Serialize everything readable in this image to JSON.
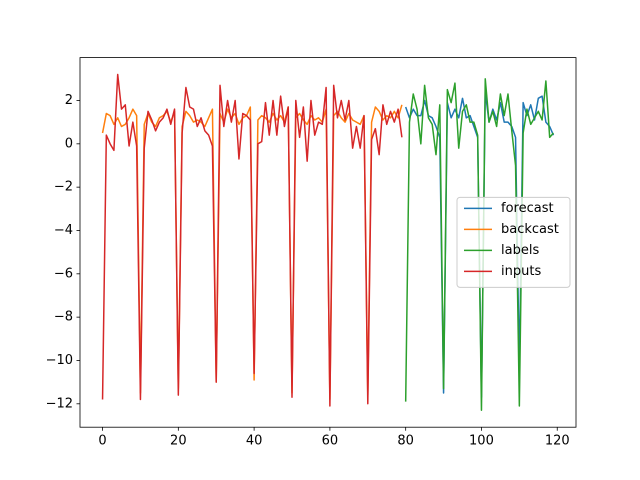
{
  "chart_data": {
    "type": "line",
    "xlim": [
      -5.95,
      124.95
    ],
    "ylim": [
      -13.08,
      3.98
    ],
    "xticks": [
      0,
      20,
      40,
      60,
      80,
      100,
      120
    ],
    "yticks": [
      {
        "value": -12,
        "label": "−12"
      },
      {
        "value": -10,
        "label": "−10"
      },
      {
        "value": -8,
        "label": "−8"
      },
      {
        "value": -6,
        "label": "−6"
      },
      {
        "value": -4,
        "label": "−4"
      },
      {
        "value": -2,
        "label": "−2"
      },
      0,
      2
    ],
    "legend": "center right",
    "series": [
      {
        "name": "forecast",
        "color": "#1f77b4",
        "x": [
          80,
          81,
          82,
          83,
          84,
          85,
          86,
          87,
          88,
          89,
          90,
          91,
          92,
          93,
          94,
          95,
          96,
          97,
          98,
          99,
          100,
          101,
          102,
          103,
          104,
          105,
          106,
          107,
          108,
          109,
          110,
          111,
          112,
          113,
          114,
          115,
          116,
          117,
          118,
          119
        ],
        "values": [
          1.7,
          1.2,
          1.6,
          1.3,
          1.3,
          2.0,
          1.3,
          1.2,
          0.8,
          0.3,
          -11.5,
          1.9,
          1.2,
          1.6,
          1.2,
          2.1,
          1.2,
          1.3,
          0.8,
          0.3,
          -11.7,
          2.4,
          1.0,
          1.6,
          1.1,
          1.9,
          1.0,
          1.0,
          0.8,
          0.3,
          -10.4,
          1.9,
          1.3,
          1.8,
          1.1,
          2.1,
          2.2,
          1.0,
          0.8,
          0.4
        ]
      },
      {
        "name": "backcast",
        "color": "#ff7f0e",
        "x": [
          0,
          1,
          2,
          3,
          4,
          5,
          6,
          7,
          8,
          9,
          10,
          11,
          12,
          13,
          14,
          15,
          16,
          17,
          18,
          19,
          20,
          21,
          22,
          23,
          24,
          25,
          26,
          27,
          28,
          29,
          30,
          31,
          32,
          33,
          34,
          35,
          36,
          37,
          38,
          39,
          40,
          41,
          42,
          43,
          44,
          45,
          46,
          47,
          48,
          49,
          50,
          51,
          52,
          53,
          54,
          55,
          56,
          57,
          58,
          59,
          60,
          61,
          62,
          63,
          64,
          65,
          66,
          67,
          68,
          69,
          70,
          71,
          72,
          73,
          74,
          75,
          76,
          77,
          78,
          79
        ],
        "values": [
          0.5,
          1.4,
          1.3,
          0.9,
          1.2,
          0.8,
          0.9,
          1.2,
          1.6,
          1.3,
          -11.5,
          0.9,
          1.4,
          1.0,
          0.8,
          1.2,
          1.3,
          1.5,
          1.0,
          1.5,
          -11.3,
          0.8,
          1.5,
          1.3,
          1.0,
          1.1,
          1.0,
          0.8,
          1.2,
          1.6,
          -11.0,
          1.4,
          1.0,
          1.6,
          1.2,
          1.4,
          0.9,
          1.2,
          1.3,
          1.7,
          -10.9,
          1.1,
          1.3,
          1.2,
          1.0,
          1.4,
          1.1,
          1.3,
          1.0,
          1.7,
          -11.5,
          1.2,
          1.4,
          1.1,
          0.9,
          1.3,
          1.1,
          1.2,
          1.0,
          1.6,
          -11.8,
          1.3,
          1.5,
          1.2,
          1.0,
          1.4,
          1.1,
          1.0,
          0.9,
          1.3,
          -11.6,
          1.0,
          1.7,
          1.5,
          1.1,
          1.3,
          1.2,
          1.5,
          1.2,
          1.8
        ]
      },
      {
        "name": "labels",
        "color": "#2ca02c",
        "x": [
          80,
          81,
          82,
          83,
          84,
          85,
          86,
          87,
          88,
          89,
          90,
          91,
          92,
          93,
          94,
          95,
          96,
          97,
          98,
          99,
          100,
          101,
          102,
          103,
          104,
          105,
          106,
          107,
          108,
          109,
          110,
          111,
          112,
          113,
          114,
          115,
          116,
          117,
          118,
          119
        ],
        "values": [
          -11.9,
          1.0,
          2.3,
          1.6,
          0.0,
          2.7,
          1.2,
          0.9,
          -0.5,
          1.8,
          -11.3,
          2.5,
          1.9,
          2.8,
          -0.2,
          1.5,
          1.8,
          1.0,
          1.0,
          0.4,
          -12.3,
          3.0,
          1.0,
          1.5,
          0.8,
          2.3,
          1.3,
          2.3,
          0.6,
          -1.0,
          -12.1,
          0.5,
          1.6,
          0.9,
          1.2,
          1.5,
          1.1,
          2.9,
          0.3,
          0.5
        ]
      },
      {
        "name": "inputs",
        "color": "#d62728",
        "x": [
          0,
          1,
          2,
          3,
          4,
          5,
          6,
          7,
          8,
          9,
          10,
          11,
          12,
          13,
          14,
          15,
          16,
          17,
          18,
          19,
          20,
          21,
          22,
          23,
          24,
          25,
          26,
          27,
          28,
          29,
          30,
          31,
          32,
          33,
          34,
          35,
          36,
          37,
          38,
          39,
          40,
          41,
          42,
          43,
          44,
          45,
          46,
          47,
          48,
          49,
          50,
          51,
          52,
          53,
          54,
          55,
          56,
          57,
          58,
          59,
          60,
          61,
          62,
          63,
          64,
          65,
          66,
          67,
          68,
          69,
          70,
          71,
          72,
          73,
          74,
          75,
          76,
          77,
          78,
          79
        ],
        "values": [
          -11.8,
          0.4,
          0.0,
          -0.3,
          3.2,
          1.6,
          1.8,
          -0.1,
          1.0,
          -0.1,
          -11.8,
          -0.2,
          1.5,
          1.1,
          0.6,
          1.0,
          1.2,
          1.6,
          0.9,
          1.6,
          -11.6,
          0.5,
          2.6,
          1.7,
          1.6,
          0.8,
          1.2,
          0.6,
          0.4,
          -0.1,
          -11.0,
          2.7,
          0.8,
          2.0,
          1.0,
          2.0,
          -0.7,
          1.4,
          1.3,
          1.1,
          -10.6,
          0.0,
          0.1,
          1.9,
          0.4,
          2.0,
          0.4,
          2.2,
          0.8,
          1.7,
          -11.7,
          2.0,
          0.3,
          1.7,
          -0.8,
          2.0,
          0.4,
          1.0,
          0.9,
          2.6,
          -12.1,
          2.7,
          1.2,
          2.0,
          1.1,
          2.0,
          -0.2,
          0.8,
          -0.2,
          1.3,
          -12.0,
          0.2,
          0.7,
          -0.5,
          1.8,
          0.9,
          1.5,
          1.0,
          1.6,
          0.3
        ]
      }
    ]
  }
}
